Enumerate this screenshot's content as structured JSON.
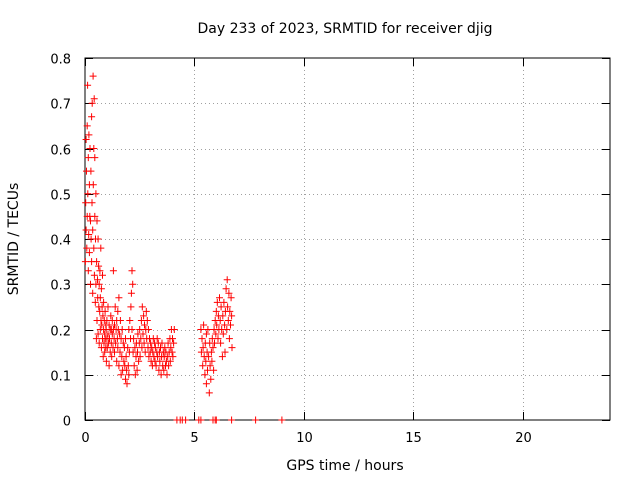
{
  "chart_data": {
    "type": "scatter",
    "title": "Day 233 of 2023, SRMTID for receiver djig",
    "xlabel": "GPS time / hours",
    "ylabel": "SRMTID / TECUs",
    "xlim": [
      0,
      24
    ],
    "ylim": [
      0,
      0.8
    ],
    "xticks": [
      0,
      5,
      10,
      15,
      20
    ],
    "yticks": [
      0,
      0.1,
      0.2,
      0.3,
      0.4,
      0.5,
      0.6,
      0.7,
      0.8
    ],
    "xtick_labels": [
      "0",
      "5",
      "10",
      "15",
      "20"
    ],
    "ytick_labels": [
      "0",
      "0.1",
      "0.2",
      "0.3",
      "0.4",
      "0.5",
      "0.6",
      "0.7",
      "0.8"
    ],
    "grid": true,
    "marker": "+",
    "color": "#ff0000",
    "series": [
      {
        "name": "SRMTID",
        "points": [
          [
            0.02,
            0.35
          ],
          [
            0.03,
            0.48
          ],
          [
            0.05,
            0.62
          ],
          [
            0.05,
            0.42
          ],
          [
            0.07,
            0.55
          ],
          [
            0.08,
            0.38
          ],
          [
            0.1,
            0.65
          ],
          [
            0.1,
            0.45
          ],
          [
            0.12,
            0.74
          ],
          [
            0.13,
            0.5
          ],
          [
            0.15,
            0.33
          ],
          [
            0.15,
            0.58
          ],
          [
            0.17,
            0.41
          ],
          [
            0.18,
            0.63
          ],
          [
            0.2,
            0.37
          ],
          [
            0.2,
            0.52
          ],
          [
            0.22,
            0.45
          ],
          [
            0.23,
            0.6
          ],
          [
            0.25,
            0.3
          ],
          [
            0.25,
            0.44
          ],
          [
            0.27,
            0.55
          ],
          [
            0.28,
            0.4
          ],
          [
            0.3,
            0.67
          ],
          [
            0.3,
            0.35
          ],
          [
            0.32,
            0.48
          ],
          [
            0.33,
            0.7
          ],
          [
            0.35,
            0.42
          ],
          [
            0.35,
            0.28
          ],
          [
            0.37,
            0.76
          ],
          [
            0.38,
            0.52
          ],
          [
            0.4,
            0.38
          ],
          [
            0.4,
            0.6
          ],
          [
            0.42,
            0.71
          ],
          [
            0.43,
            0.32
          ],
          [
            0.45,
            0.45
          ],
          [
            0.45,
            0.58
          ],
          [
            0.47,
            0.26
          ],
          [
            0.48,
            0.4
          ],
          [
            0.5,
            0.5
          ],
          [
            0.5,
            0.3
          ],
          [
            0.52,
            0.18
          ],
          [
            0.53,
            0.35
          ],
          [
            0.55,
            0.44
          ],
          [
            0.55,
            0.22
          ],
          [
            0.57,
            0.31
          ],
          [
            0.58,
            0.27
          ],
          [
            0.6,
            0.4
          ],
          [
            0.6,
            0.19
          ],
          [
            0.62,
            0.34
          ],
          [
            0.63,
            0.25
          ],
          [
            0.65,
            0.3
          ],
          [
            0.65,
            0.17
          ],
          [
            0.67,
            0.24
          ],
          [
            0.68,
            0.33
          ],
          [
            0.7,
            0.2
          ],
          [
            0.7,
            0.27
          ],
          [
            0.72,
            0.38
          ],
          [
            0.73,
            0.22
          ],
          [
            0.75,
            0.16
          ],
          [
            0.75,
            0.29
          ],
          [
            0.77,
            0.21
          ],
          [
            0.78,
            0.25
          ],
          [
            0.8,
            0.18
          ],
          [
            0.8,
            0.32
          ],
          [
            0.82,
            0.23
          ],
          [
            0.83,
            0.14
          ],
          [
            0.85,
            0.2
          ],
          [
            0.85,
            0.26
          ],
          [
            0.87,
            0.17
          ],
          [
            0.88,
            0.22
          ],
          [
            0.9,
            0.15
          ],
          [
            0.9,
            0.19
          ],
          [
            0.92,
            0.24
          ],
          [
            0.93,
            0.18
          ],
          [
            0.95,
            0.21
          ],
          [
            0.95,
            0.16
          ],
          [
            0.97,
            0.2
          ],
          [
            0.98,
            0.13
          ],
          [
            1.0,
            0.18
          ],
          [
            1.0,
            0.22
          ],
          [
            1.02,
            0.16
          ],
          [
            1.05,
            0.19
          ],
          [
            1.05,
            0.25
          ],
          [
            1.08,
            0.17
          ],
          [
            1.1,
            0.21
          ],
          [
            1.1,
            0.12
          ],
          [
            1.12,
            0.18
          ],
          [
            1.15,
            0.2
          ],
          [
            1.15,
            0.15
          ],
          [
            1.18,
            0.23
          ],
          [
            1.2,
            0.17
          ],
          [
            1.2,
            0.2
          ],
          [
            1.22,
            0.14
          ],
          [
            1.25,
            0.19
          ],
          [
            1.25,
            0.22
          ],
          [
            1.28,
            0.16
          ],
          [
            1.3,
            0.2
          ],
          [
            1.3,
            0.33
          ],
          [
            1.33,
            0.18
          ],
          [
            1.35,
            0.21
          ],
          [
            1.35,
            0.15
          ],
          [
            1.38,
            0.25
          ],
          [
            1.4,
            0.17
          ],
          [
            1.42,
            0.2
          ],
          [
            1.45,
            0.22
          ],
          [
            1.45,
            0.13
          ],
          [
            1.48,
            0.18
          ],
          [
            1.5,
            0.24
          ],
          [
            1.5,
            0.16
          ],
          [
            1.52,
            0.2
          ],
          [
            1.55,
            0.27
          ],
          [
            1.55,
            0.12
          ],
          [
            1.58,
            0.19
          ],
          [
            1.6,
            0.15
          ],
          [
            1.62,
            0.22
          ],
          [
            1.65,
            0.18
          ],
          [
            1.65,
            0.1
          ],
          [
            1.68,
            0.14
          ],
          [
            1.7,
            0.2
          ],
          [
            1.72,
            0.11
          ],
          [
            1.75,
            0.17
          ],
          [
            1.78,
            0.13
          ],
          [
            1.8,
            0.16
          ],
          [
            1.82,
            0.12
          ],
          [
            1.85,
            0.09
          ],
          [
            1.85,
            0.18
          ],
          [
            1.88,
            0.14
          ],
          [
            1.9,
            0.11
          ],
          [
            1.92,
            0.08
          ],
          [
            1.95,
            0.16
          ],
          [
            1.98,
            0.12
          ],
          [
            2.0,
            0.2
          ],
          [
            2.0,
            0.1
          ],
          [
            2.03,
            0.15
          ],
          [
            2.05,
            0.22
          ],
          [
            2.08,
            0.18
          ],
          [
            2.1,
            0.25
          ],
          [
            2.12,
            0.28
          ],
          [
            2.15,
            0.33
          ],
          [
            2.15,
            0.2
          ],
          [
            2.18,
            0.3
          ],
          [
            2.2,
            0.15
          ],
          [
            2.22,
            0.18
          ],
          [
            2.25,
            0.12
          ],
          [
            2.28,
            0.16
          ],
          [
            2.3,
            0.1
          ],
          [
            2.33,
            0.14
          ],
          [
            2.35,
            0.17
          ],
          [
            2.38,
            0.11
          ],
          [
            2.4,
            0.15
          ],
          [
            2.42,
            0.19
          ],
          [
            2.45,
            0.13
          ],
          [
            2.48,
            0.17
          ],
          [
            2.5,
            0.2
          ],
          [
            2.52,
            0.14
          ],
          [
            2.55,
            0.18
          ],
          [
            2.58,
            0.22
          ],
          [
            2.6,
            0.16
          ],
          [
            2.62,
            0.25
          ],
          [
            2.65,
            0.19
          ],
          [
            2.68,
            0.23
          ],
          [
            2.7,
            0.17
          ],
          [
            2.72,
            0.21
          ],
          [
            2.75,
            0.15
          ],
          [
            2.78,
            0.2
          ],
          [
            2.8,
            0.24
          ],
          [
            2.82,
            0.18
          ],
          [
            2.85,
            0.22
          ],
          [
            2.88,
            0.16
          ],
          [
            2.9,
            0.2
          ],
          [
            2.92,
            0.14
          ],
          [
            2.95,
            0.18
          ],
          [
            2.98,
            0.15
          ],
          [
            3.0,
            0.17
          ],
          [
            3.02,
            0.13
          ],
          [
            3.05,
            0.16
          ],
          [
            3.08,
            0.12
          ],
          [
            3.1,
            0.15
          ],
          [
            3.12,
            0.18
          ],
          [
            3.15,
            0.14
          ],
          [
            3.18,
            0.17
          ],
          [
            3.2,
            0.13
          ],
          [
            3.22,
            0.16
          ],
          [
            3.25,
            0.12
          ],
          [
            3.28,
            0.15
          ],
          [
            3.3,
            0.18
          ],
          [
            3.32,
            0.14
          ],
          [
            3.35,
            0.17
          ],
          [
            3.38,
            0.11
          ],
          [
            3.4,
            0.15
          ],
          [
            3.42,
            0.13
          ],
          [
            3.45,
            0.16
          ],
          [
            3.48,
            0.1
          ],
          [
            3.5,
            0.14
          ],
          [
            3.52,
            0.17
          ],
          [
            3.55,
            0.12
          ],
          [
            3.58,
            0.15
          ],
          [
            3.6,
            0.11
          ],
          [
            3.62,
            0.14
          ],
          [
            3.65,
            0.16
          ],
          [
            3.68,
            0.12
          ],
          [
            3.7,
            0.15
          ],
          [
            3.72,
            0.13
          ],
          [
            3.75,
            0.1
          ],
          [
            3.78,
            0.14
          ],
          [
            3.8,
            0.17
          ],
          [
            3.82,
            0.12
          ],
          [
            3.85,
            0.15
          ],
          [
            3.88,
            0.18
          ],
          [
            3.9,
            0.13
          ],
          [
            3.92,
            0.16
          ],
          [
            3.95,
            0.2
          ],
          [
            3.98,
            0.15
          ],
          [
            4.0,
            0.18
          ],
          [
            4.02,
            0.14
          ],
          [
            4.05,
            0.17
          ],
          [
            4.08,
            0.2
          ],
          [
            4.2,
            0.0
          ],
          [
            4.35,
            0.0
          ],
          [
            4.45,
            0.0
          ],
          [
            4.6,
            0.0
          ],
          [
            5.2,
            0.0
          ],
          [
            5.3,
            0.0
          ],
          [
            5.85,
            0.0
          ],
          [
            5.95,
            0.0
          ],
          [
            6.0,
            0.0
          ],
          [
            6.7,
            0.0
          ],
          [
            7.8,
            0.0
          ],
          [
            9.0,
            0.0
          ],
          [
            5.3,
            0.2
          ],
          [
            5.32,
            0.15
          ],
          [
            5.35,
            0.18
          ],
          [
            5.38,
            0.12
          ],
          [
            5.4,
            0.16
          ],
          [
            5.42,
            0.21
          ],
          [
            5.45,
            0.14
          ],
          [
            5.48,
            0.1
          ],
          [
            5.5,
            0.17
          ],
          [
            5.52,
            0.13
          ],
          [
            5.55,
            0.08
          ],
          [
            5.55,
            0.19
          ],
          [
            5.58,
            0.15
          ],
          [
            5.6,
            0.11
          ],
          [
            5.62,
            0.2
          ],
          [
            5.65,
            0.14
          ],
          [
            5.68,
            0.06
          ],
          [
            5.7,
            0.17
          ],
          [
            5.72,
            0.12
          ],
          [
            5.75,
            0.09
          ],
          [
            5.78,
            0.15
          ],
          [
            5.8,
            0.13
          ],
          [
            5.82,
            0.18
          ],
          [
            5.85,
            0.16
          ],
          [
            5.88,
            0.11
          ],
          [
            5.9,
            0.2
          ],
          [
            5.92,
            0.17
          ],
          [
            5.95,
            0.22
          ],
          [
            5.98,
            0.19
          ],
          [
            6.0,
            0.24
          ],
          [
            6.02,
            0.21
          ],
          [
            6.05,
            0.26
          ],
          [
            6.08,
            0.18
          ],
          [
            6.1,
            0.23
          ],
          [
            6.12,
            0.2
          ],
          [
            6.15,
            0.27
          ],
          [
            6.18,
            0.22
          ],
          [
            6.2,
            0.17
          ],
          [
            6.22,
            0.25
          ],
          [
            6.25,
            0.2
          ],
          [
            6.28,
            0.14
          ],
          [
            6.3,
            0.23
          ],
          [
            6.32,
            0.19
          ],
          [
            6.35,
            0.26
          ],
          [
            6.38,
            0.21
          ],
          [
            6.4,
            0.15
          ],
          [
            6.42,
            0.24
          ],
          [
            6.45,
            0.29
          ],
          [
            6.48,
            0.2
          ],
          [
            6.5,
            0.31
          ],
          [
            6.52,
            0.25
          ],
          [
            6.55,
            0.22
          ],
          [
            6.58,
            0.28
          ],
          [
            6.6,
            0.18
          ],
          [
            6.62,
            0.24
          ],
          [
            6.65,
            0.21
          ],
          [
            6.68,
            0.27
          ],
          [
            6.7,
            0.23
          ],
          [
            6.72,
            0.16
          ]
        ]
      }
    ]
  }
}
